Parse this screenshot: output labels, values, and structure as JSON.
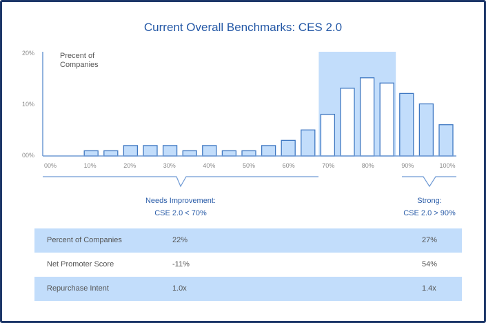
{
  "chart_data": {
    "type": "bar",
    "title": "Current Overall Benchmarks: CES 2.0",
    "ylabel": "Precent of Companies",
    "ylabel_lines": [
      "Precent of",
      "Companies"
    ],
    "ylim": [
      0,
      20
    ],
    "yticks": [
      "00%",
      "10%",
      "20%"
    ],
    "xticks": [
      "00%",
      "10%",
      "20%",
      "30%",
      "40%",
      "50%",
      "60%",
      "70%",
      "80%",
      "90%",
      "100%"
    ],
    "x": [
      10,
      15,
      20,
      25,
      30,
      35,
      40,
      45,
      50,
      55,
      60,
      65,
      70,
      75,
      80,
      85,
      90,
      95,
      100
    ],
    "values": [
      1,
      1,
      2,
      2,
      2,
      1,
      2,
      1,
      1,
      2,
      3,
      5,
      8,
      13,
      15,
      14,
      12,
      10,
      6
    ],
    "highlighted_x": [
      70,
      75,
      80,
      85
    ],
    "grid": false,
    "colors": {
      "bar_fill": "#c2ddfb",
      "bar_stroke": "#3f78c2",
      "highlight_band": "#c2ddfb",
      "highlight_bar_fill": "#ffffff",
      "title": "#2458a6"
    }
  },
  "categories": {
    "needs_improvement": {
      "line1": "Needs Improvement:",
      "line2": "CSE 2.0 < 70%"
    },
    "strong": {
      "line1": "Strong:",
      "line2": "CSE 2.0 > 90%"
    }
  },
  "table": {
    "rows": [
      {
        "label": "Percent of Companies",
        "needs": "22%",
        "strong": "27%"
      },
      {
        "label": "Net Promoter Score",
        "needs": "-11%",
        "strong": "54%"
      },
      {
        "label": "Repurchase Intent",
        "needs": "1.0x",
        "strong": "1.4x"
      }
    ]
  }
}
